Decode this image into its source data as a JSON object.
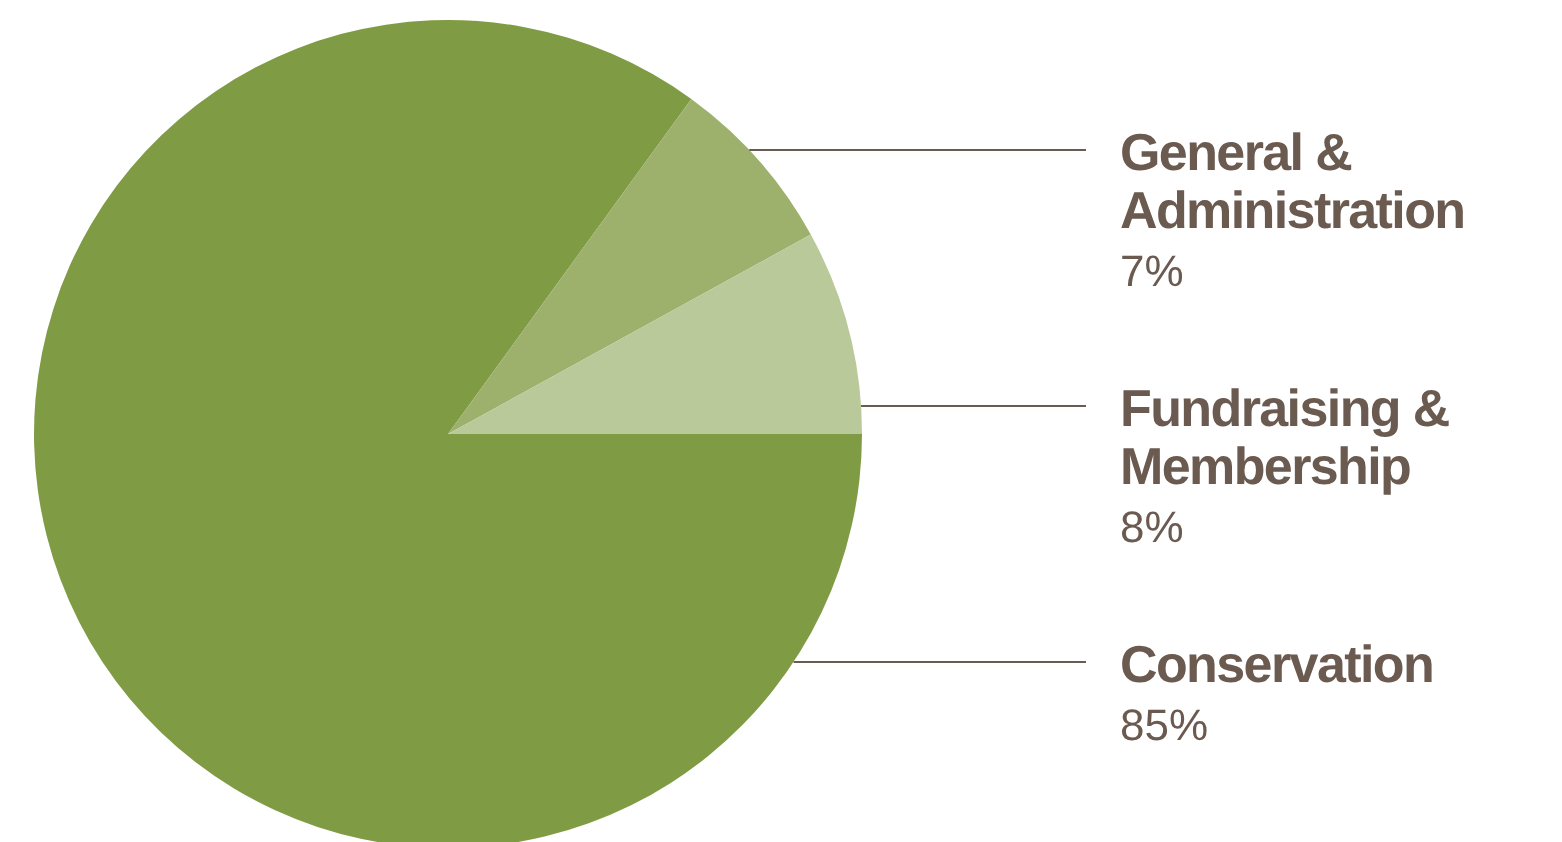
{
  "chart_data": {
    "type": "pie",
    "categories": [
      "Conservation",
      "General & Administration",
      "Fundraising & Membership"
    ],
    "values": [
      85,
      7,
      8
    ],
    "colors": [
      "#7f9c45",
      "#9db06c",
      "#bac99a"
    ],
    "value_labels": [
      "85%",
      "7%",
      "8%"
    ]
  }
}
